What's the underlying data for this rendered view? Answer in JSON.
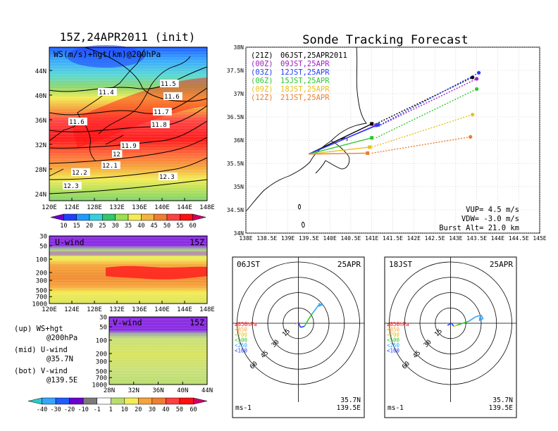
{
  "map": {
    "title": "15Z,24APR2011 (init)",
    "field_label": "WS(m/s)+hgt(km)@200hPa",
    "lat_ticks": [
      "44N",
      "40N",
      "36N",
      "32N",
      "28N",
      "24N"
    ],
    "lon_ticks": [
      "120E",
      "124E",
      "128E",
      "132E",
      "136E",
      "140E",
      "144E",
      "148E"
    ],
    "contour_labels": [
      "11.4",
      "11.5",
      "11.6",
      "11.6",
      "11.7",
      "11.8",
      "11.9",
      "12",
      "12.1",
      "12.2",
      "12.3",
      "12.3"
    ],
    "colorbar": {
      "labels": [
        "10",
        "15",
        "20",
        "25",
        "30",
        "35",
        "40",
        "45",
        "50",
        "55",
        "60"
      ],
      "colors": [
        "#6a00d0",
        "#2040ff",
        "#1f9bff",
        "#35d0e0",
        "#2fc86a",
        "#9ae04f",
        "#f3ec55",
        "#f6b23b",
        "#f07d30",
        "#ff4040",
        "#ff1010",
        "#d0006a"
      ]
    }
  },
  "u_panel": {
    "label": "U-wind",
    "time": "15Z",
    "pressure_ticks": [
      "30",
      "50",
      "100",
      "200",
      "300",
      "500",
      "700",
      "1000"
    ],
    "lon_ticks": [
      "120E",
      "124E",
      "128E",
      "132E",
      "136E",
      "140E",
      "144E",
      "148E"
    ]
  },
  "v_panel": {
    "label": "V-wind",
    "time": "15Z",
    "pressure_ticks": [
      "30",
      "50",
      "100",
      "200",
      "300",
      "500",
      "700",
      "1000"
    ],
    "lat_ticks": [
      "28N",
      "32N",
      "36N",
      "40N",
      "44N"
    ]
  },
  "notes": [
    {
      "line1": "(up) WS+hgt",
      "line2": "@200hPa"
    },
    {
      "line1": "(mid) U-wind",
      "line2": "@35.7N"
    },
    {
      "line1": "(bot) V-wind",
      "line2": "@139.5E"
    }
  ],
  "wind_colorbar": {
    "labels": [
      "-40",
      "-30",
      "-20",
      "-10",
      "-1",
      "1",
      "10",
      "20",
      "30",
      "40",
      "50",
      "60"
    ],
    "colors": [
      "#2fc8c8",
      "#35a6ff",
      "#1f5cff",
      "#6a00d0",
      "#7a7a7a",
      "#ffffff",
      "#b9dd6e",
      "#f3ec55",
      "#f6a33b",
      "#f07d30",
      "#ff4040",
      "#ff1010",
      "#d0006a"
    ]
  },
  "tracking": {
    "title": "Sonde Tracking Forecast",
    "lat_ticks": [
      "38N",
      "37.5N",
      "37N",
      "36.5N",
      "36N",
      "35.5N",
      "35N",
      "34.5N",
      "34N"
    ],
    "lon_ticks": [
      "138E",
      "138.5E",
      "139E",
      "139.5E",
      "140E",
      "140.5E",
      "141E",
      "141.5E",
      "142E",
      "142.5E",
      "143E",
      "143.5E",
      "144E",
      "144.5E",
      "145E"
    ],
    "legend": [
      {
        "code": "(21Z)",
        "label": "06JST,25APR2011",
        "color": "#000000"
      },
      {
        "code": "(00Z)",
        "label": "09JST,25APR",
        "color": "#a020c0"
      },
      {
        "code": "(03Z)",
        "label": "12JST,25APR",
        "color": "#2040ff"
      },
      {
        "code": "(06Z)",
        "label": "15JST,25APR",
        "color": "#2fc82f"
      },
      {
        "code": "(09Z)",
        "label": "18JST,25APR",
        "color": "#e8c020"
      },
      {
        "code": "(12Z)",
        "label": "21JST,25APR",
        "color": "#f07d30"
      }
    ],
    "params": {
      "vup": "VUP= 4.5 m/s",
      "vdw": "VDW= -3.0 m/s",
      "burst": "Burst Alt= 21.0 km"
    }
  },
  "chart_data": [
    {
      "type": "line",
      "title": "Sonde Tracking Forecast",
      "xlabel": "",
      "ylabel": "",
      "xlim": [
        138,
        145
      ],
      "ylim": [
        34,
        38
      ],
      "grid": true,
      "series": [
        {
          "name": "06JST,25APR2011",
          "color": "#000000",
          "x": [
            139.5,
            141.0,
            141.1,
            143.4
          ],
          "y": [
            35.7,
            36.35,
            36.35,
            37.35
          ]
        },
        {
          "name": "09JST,25APR",
          "color": "#a020c0",
          "x": [
            139.5,
            141.1,
            141.2,
            143.5
          ],
          "y": [
            35.7,
            36.32,
            36.32,
            37.32
          ]
        },
        {
          "name": "12JST,25APR",
          "color": "#2040ff",
          "x": [
            139.5,
            141.15,
            141.2,
            143.55
          ],
          "y": [
            35.7,
            36.33,
            36.33,
            37.45
          ]
        },
        {
          "name": "15JST,25APR",
          "color": "#2fc82f",
          "x": [
            139.5,
            141.0,
            141.1,
            143.5
          ],
          "y": [
            35.7,
            36.05,
            36.05,
            37.1
          ]
        },
        {
          "name": "18JST,25APR",
          "color": "#e8c020",
          "x": [
            139.5,
            140.95,
            141.0,
            143.4
          ],
          "y": [
            35.7,
            35.85,
            35.85,
            36.55
          ]
        },
        {
          "name": "21JST,25APR",
          "color": "#f07d30",
          "x": [
            139.5,
            140.9,
            141.0,
            143.35
          ],
          "y": [
            35.7,
            35.72,
            35.72,
            36.07
          ]
        }
      ]
    },
    {
      "type": "line",
      "title": "06JST 25APR hodograph",
      "location": "35.7N 139.5E",
      "units": "ms-1",
      "rings": [
        "15",
        "30",
        "45",
        "60"
      ],
      "pressure_legend": [
        "≥850hPa",
        "<850",
        "<700",
        "<500",
        "<250",
        "<100"
      ],
      "pressure_legend_colors": [
        "#ff1010",
        "#f6a33b",
        "#e8c020",
        "#2fc82f",
        "#35a6ff",
        "#2040ff"
      ],
      "series": [
        {
          "name": "hodograph",
          "u": [
            -3,
            0,
            2,
            6,
            10,
            14,
            20,
            24
          ],
          "v": [
            -1,
            1,
            -4,
            -3,
            4,
            10,
            18,
            18
          ],
          "colors": [
            "#ff1010",
            "#f6a33b",
            "#2040ff",
            "#2040ff",
            "#2fc82f",
            "#2fc82f",
            "#35a6ff",
            "#35a6ff"
          ]
        }
      ]
    },
    {
      "type": "line",
      "title": "18JST 25APR hodograph",
      "location": "35.7N 139.5E",
      "units": "ms-1",
      "rings": [
        "15",
        "30",
        "45",
        "60"
      ],
      "pressure_legend": [
        "≥850hPa",
        "<850",
        "<700",
        "<500",
        "<250",
        "<100"
      ],
      "pressure_legend_colors": [
        "#ff1010",
        "#f6a33b",
        "#e8c020",
        "#2fc82f",
        "#35a6ff",
        "#2040ff"
      ],
      "series": [
        {
          "name": "hodograph",
          "u": [
            -3,
            1,
            3,
            6,
            12,
            18,
            24,
            30,
            32
          ],
          "v": [
            -2,
            0,
            -3,
            -2,
            0,
            2,
            6,
            8,
            4
          ],
          "colors": [
            "#ff1010",
            "#2040ff",
            "#2040ff",
            "#e8c020",
            "#2fc82f",
            "#2fc82f",
            "#35a6ff",
            "#35a6ff",
            "#35a6ff"
          ]
        }
      ]
    }
  ],
  "hodographs": [
    {
      "time": "06JST",
      "date": "25APR",
      "lat": "35.7N",
      "lon": "139.5E",
      "units": "ms-1"
    },
    {
      "time": "18JST",
      "date": "25APR",
      "lat": "35.7N",
      "lon": "139.5E",
      "units": "ms-1"
    }
  ]
}
